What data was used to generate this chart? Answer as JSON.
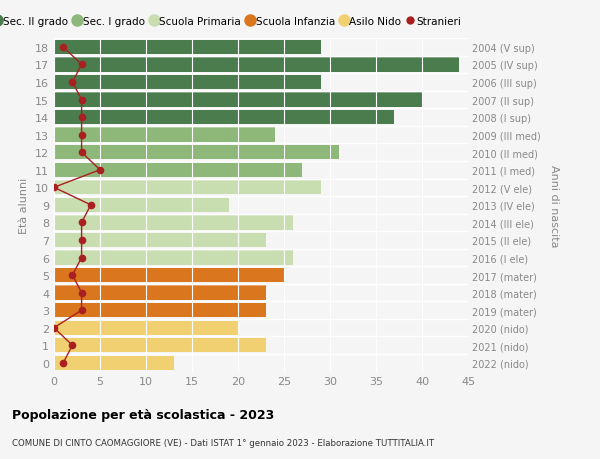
{
  "ages": [
    18,
    17,
    16,
    15,
    14,
    13,
    12,
    11,
    10,
    9,
    8,
    7,
    6,
    5,
    4,
    3,
    2,
    1,
    0
  ],
  "right_labels": [
    "2004 (V sup)",
    "2005 (IV sup)",
    "2006 (III sup)",
    "2007 (II sup)",
    "2008 (I sup)",
    "2009 (III med)",
    "2010 (II med)",
    "2011 (I med)",
    "2012 (V ele)",
    "2013 (IV ele)",
    "2014 (III ele)",
    "2015 (II ele)",
    "2016 (I ele)",
    "2017 (mater)",
    "2018 (mater)",
    "2019 (mater)",
    "2020 (nido)",
    "2021 (nido)",
    "2022 (nido)"
  ],
  "bar_values": [
    29,
    44,
    29,
    40,
    37,
    24,
    31,
    27,
    29,
    19,
    26,
    23,
    26,
    25,
    23,
    23,
    20,
    23,
    13
  ],
  "bar_colors": [
    "#4a7c4e",
    "#4a7c4e",
    "#4a7c4e",
    "#4a7c4e",
    "#4a7c4e",
    "#8db87a",
    "#8db87a",
    "#8db87a",
    "#c8ddb0",
    "#c8ddb0",
    "#c8ddb0",
    "#c8ddb0",
    "#c8ddb0",
    "#d9761e",
    "#d9761e",
    "#d9761e",
    "#f0d070",
    "#f0d070",
    "#f0d070"
  ],
  "stranieri_values": [
    1,
    3,
    2,
    3,
    3,
    3,
    3,
    5,
    0,
    4,
    3,
    3,
    3,
    2,
    3,
    3,
    0,
    2,
    1
  ],
  "title": "Popolazione per età scolastica - 2023",
  "subtitle": "COMUNE DI CINTO CAOMAGGIORE (VE) - Dati ISTAT 1° gennaio 2023 - Elaborazione TUTTITALIA.IT",
  "ylabel_left": "Età alunni",
  "ylabel_right": "Anni di nascita",
  "xlim": [
    0,
    45
  ],
  "xticks": [
    0,
    5,
    10,
    15,
    20,
    25,
    30,
    35,
    40,
    45
  ],
  "bg_color": "#f5f5f5",
  "grid_color": "#ffffff",
  "label_color": "#888888",
  "legend_items": [
    {
      "label": "Sec. II grado",
      "color": "#4a7c4e"
    },
    {
      "label": "Sec. I grado",
      "color": "#8db87a"
    },
    {
      "label": "Scuola Primaria",
      "color": "#c8ddb0"
    },
    {
      "label": "Scuola Infanzia",
      "color": "#d9761e"
    },
    {
      "label": "Asilo Nido",
      "color": "#f0d070"
    },
    {
      "label": "Stranieri",
      "color": "#aa2020"
    }
  ]
}
